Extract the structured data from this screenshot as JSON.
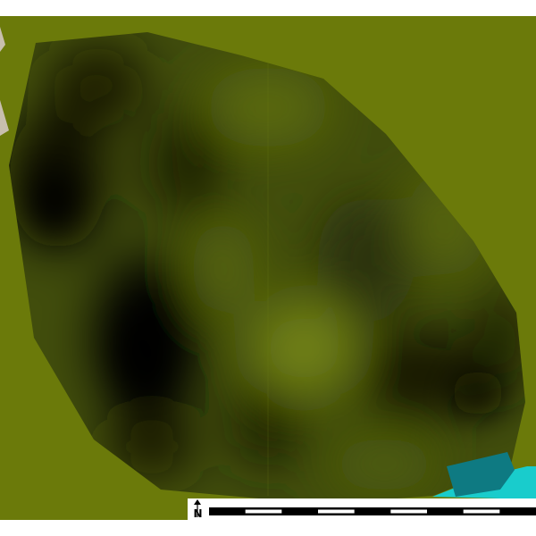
{
  "map": {
    "colors": {
      "background_land": "#6b7a0a",
      "field_dark": "#0a0c00",
      "field_mid": "#3d4a0a",
      "field_light": "#6e7e14",
      "parcel_beige": "#c8bfae",
      "water_teal": "#0e7a82",
      "water_cyan": "#19cccc"
    }
  },
  "north_arrow": {
    "icon": "north-arrow-icon",
    "letter": "N"
  },
  "scale_bar": {
    "segments": 9,
    "colors": [
      "#000000",
      "#ffffff"
    ]
  }
}
